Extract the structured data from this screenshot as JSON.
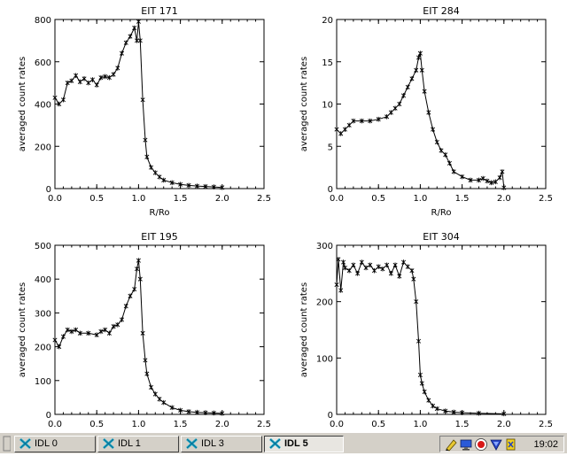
{
  "chart_data": [
    {
      "type": "line",
      "title": "EIT 171",
      "xlabel": "R/Ro",
      "ylabel": "averaged count rates",
      "xlim": [
        0,
        2.5
      ],
      "ylim": [
        0,
        800
      ],
      "xticks": [
        "0.0",
        "0.5",
        "1.0",
        "1.5",
        "2.0",
        "2.5"
      ],
      "yticks": [
        "0",
        "200",
        "400",
        "600",
        "800"
      ],
      "marker": "asterisk",
      "series": [
        {
          "x": [
            0.0,
            0.05,
            0.1,
            0.15,
            0.2,
            0.25,
            0.3,
            0.35,
            0.4,
            0.45,
            0.5,
            0.55,
            0.6,
            0.65,
            0.7,
            0.75,
            0.8,
            0.85,
            0.9,
            0.95,
            0.98,
            1.0,
            1.02,
            1.05,
            1.08,
            1.1,
            1.15,
            1.2,
            1.25,
            1.3,
            1.4,
            1.5,
            1.6,
            1.7,
            1.8,
            1.9,
            2.0
          ],
          "y": [
            430,
            400,
            420,
            500,
            510,
            535,
            505,
            520,
            500,
            515,
            490,
            525,
            530,
            525,
            540,
            570,
            640,
            690,
            720,
            760,
            700,
            790,
            700,
            420,
            230,
            150,
            100,
            75,
            55,
            40,
            28,
            20,
            15,
            12,
            10,
            8,
            5
          ]
        }
      ]
    },
    {
      "type": "line",
      "title": "EIT 284",
      "xlabel": "R/Ro",
      "ylabel": "averaged count rates",
      "xlim": [
        0,
        2.5
      ],
      "ylim": [
        0,
        20
      ],
      "xticks": [
        "0.0",
        "0.5",
        "1.0",
        "1.5",
        "2.0",
        "2.5"
      ],
      "yticks": [
        "0",
        "5",
        "10",
        "15",
        "20"
      ],
      "marker": "asterisk",
      "series": [
        {
          "x": [
            0.0,
            0.05,
            0.1,
            0.15,
            0.2,
            0.3,
            0.4,
            0.5,
            0.6,
            0.65,
            0.7,
            0.75,
            0.8,
            0.85,
            0.9,
            0.95,
            0.98,
            1.0,
            1.02,
            1.05,
            1.1,
            1.15,
            1.2,
            1.25,
            1.3,
            1.35,
            1.4,
            1.5,
            1.6,
            1.7,
            1.75,
            1.8,
            1.85,
            1.9,
            1.95,
            1.98,
            2.0
          ],
          "y": [
            7.0,
            6.5,
            7.0,
            7.5,
            8.0,
            8.0,
            8.0,
            8.2,
            8.5,
            9.0,
            9.5,
            10.0,
            11.0,
            12.0,
            13.0,
            14.0,
            15.5,
            16.0,
            14.0,
            11.5,
            9.0,
            7.0,
            5.5,
            4.5,
            4.0,
            3.0,
            2.0,
            1.4,
            1.0,
            1.0,
            1.2,
            0.9,
            0.7,
            0.8,
            1.3,
            2.0,
            0.1
          ]
        }
      ]
    },
    {
      "type": "line",
      "title": "EIT 195",
      "xlabel": "",
      "ylabel": "averaged count rates",
      "xlim": [
        0,
        2.5
      ],
      "ylim": [
        0,
        500
      ],
      "xticks": [
        "0.0",
        "0.5",
        "1.0",
        "1.5",
        "2.0",
        "2.5"
      ],
      "yticks": [
        "0",
        "100",
        "200",
        "300",
        "400",
        "500"
      ],
      "marker": "asterisk",
      "series": [
        {
          "x": [
            0.0,
            0.05,
            0.1,
            0.15,
            0.2,
            0.25,
            0.3,
            0.4,
            0.5,
            0.55,
            0.6,
            0.65,
            0.7,
            0.75,
            0.8,
            0.85,
            0.9,
            0.95,
            0.98,
            1.0,
            1.02,
            1.05,
            1.08,
            1.1,
            1.15,
            1.2,
            1.25,
            1.3,
            1.4,
            1.5,
            1.6,
            1.7,
            1.8,
            1.9,
            2.0
          ],
          "y": [
            220,
            200,
            230,
            250,
            245,
            250,
            240,
            240,
            235,
            245,
            250,
            240,
            260,
            265,
            280,
            320,
            350,
            370,
            430,
            455,
            400,
            240,
            160,
            120,
            80,
            60,
            45,
            35,
            20,
            12,
            8,
            6,
            5,
            4,
            3
          ]
        }
      ]
    },
    {
      "type": "line",
      "title": "EIT 304",
      "xlabel": "",
      "ylabel": "averaged count rates",
      "xlim": [
        0,
        2.5
      ],
      "ylim": [
        0,
        300
      ],
      "xticks": [
        "0.0",
        "0.5",
        "1.0",
        "1.5",
        "2.0",
        "2.5"
      ],
      "yticks": [
        "0",
        "100",
        "200",
        "300"
      ],
      "marker": "asterisk",
      "series": [
        {
          "x": [
            0.0,
            0.02,
            0.05,
            0.08,
            0.1,
            0.15,
            0.2,
            0.25,
            0.3,
            0.35,
            0.4,
            0.45,
            0.5,
            0.55,
            0.6,
            0.65,
            0.7,
            0.75,
            0.8,
            0.85,
            0.9,
            0.92,
            0.95,
            0.98,
            1.0,
            1.02,
            1.05,
            1.1,
            1.15,
            1.2,
            1.3,
            1.4,
            1.5,
            1.7,
            2.0
          ],
          "y": [
            230,
            275,
            220,
            270,
            260,
            255,
            265,
            250,
            270,
            260,
            265,
            255,
            262,
            258,
            265,
            250,
            265,
            245,
            270,
            262,
            255,
            240,
            200,
            130,
            70,
            55,
            40,
            25,
            15,
            10,
            6,
            4,
            3,
            2,
            1
          ]
        }
      ]
    }
  ],
  "taskbar": {
    "tasks": [
      {
        "label": "IDL 0",
        "active": false
      },
      {
        "label": "IDL 1",
        "active": false
      },
      {
        "label": "IDL 3",
        "active": false
      },
      {
        "label": "IDL 5",
        "active": true
      }
    ],
    "clock": "19:02",
    "tray_icons": [
      "pen-icon",
      "monitor-icon",
      "record-icon",
      "shield-icon",
      "network-icon"
    ]
  }
}
